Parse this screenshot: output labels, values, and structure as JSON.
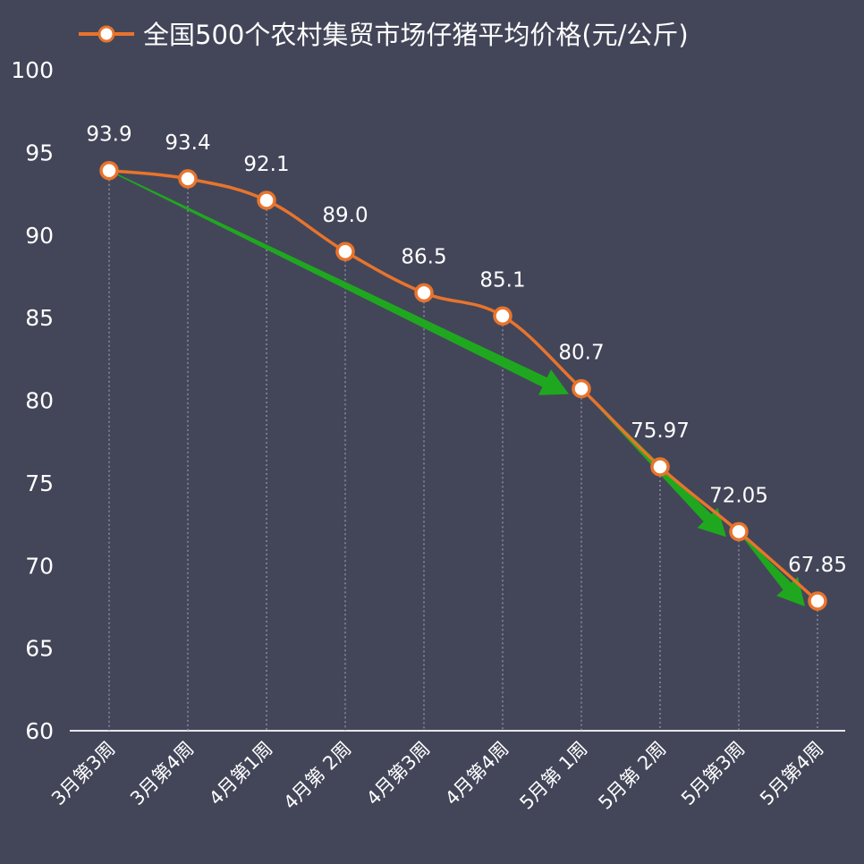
{
  "chart_data": {
    "type": "line",
    "legend": {
      "label": "全国500个农村集贸市场仔猪平均价格(元/公斤)",
      "position": "top"
    },
    "categories": [
      "3月第3周",
      "3月第4周",
      "4月第1周",
      "4月第 2周",
      "4月第3周",
      "4月第4周",
      "5月第 1周",
      "5月第 2周",
      "5月第3周",
      "5月第4周"
    ],
    "series": [
      {
        "name": "全国500个农村集贸市场仔猪平均价格(元/公斤)",
        "values": [
          93.9,
          93.4,
          92.1,
          89.0,
          86.5,
          85.1,
          80.7,
          75.97,
          72.05,
          67.85
        ],
        "labels": [
          "93.9",
          "93.4",
          "92.1",
          "89.0",
          "86.5",
          "85.1",
          "80.7",
          "75.97",
          "72.05",
          "67.85"
        ]
      }
    ],
    "yticks": [
      "100",
      "95",
      "90",
      "85",
      "80",
      "75",
      "70",
      "65",
      "60"
    ],
    "ylim": [
      60,
      100
    ],
    "grid": false,
    "drop_lines": true,
    "trend_arrows": [
      {
        "from": "3月第3周",
        "to": "5月第 1周"
      },
      {
        "from": "5月第 1周",
        "to": "5月第3周"
      },
      {
        "from": "5月第3周",
        "to": "5月第4周"
      }
    ],
    "colors": {
      "background": "#434659",
      "line": "#e8742c",
      "marker_fill": "#ffffff",
      "arrow": "#1fa81f",
      "axis": "#e6e6ea",
      "drop_line": "#9a9cab",
      "text": "#ffffff"
    }
  }
}
